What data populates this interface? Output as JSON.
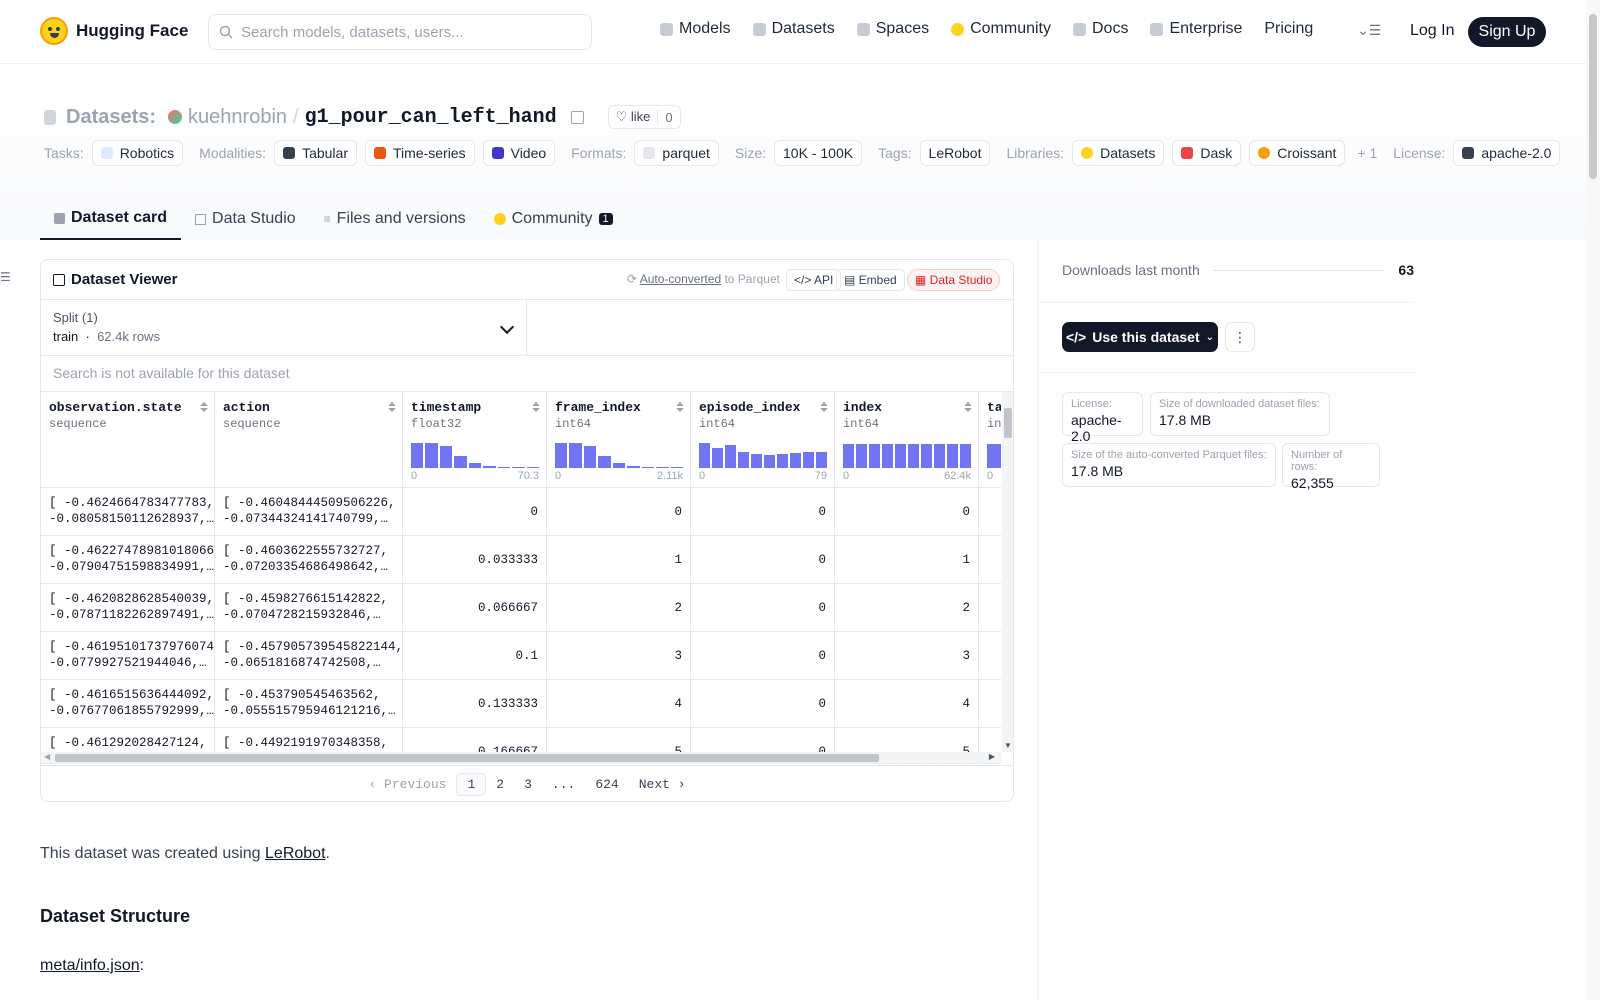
{
  "header": {
    "logo_text": "Hugging Face",
    "search_placeholder": "Search models, datasets, users...",
    "nav": [
      "Models",
      "Datasets",
      "Spaces",
      "Community",
      "Docs",
      "Enterprise",
      "Pricing"
    ],
    "login": "Log In",
    "signup": "Sign Up"
  },
  "repo": {
    "type_label": "Datasets:",
    "owner": "kuehnrobin",
    "separator": "/",
    "name": "g1_pour_can_left_hand",
    "like_label": "like",
    "like_count": "0",
    "tags": {
      "tasks_label": "Tasks:",
      "tasks": [
        "Robotics"
      ],
      "modalities_label": "Modalities:",
      "modalities": [
        "Tabular",
        "Time-series",
        "Video"
      ],
      "formats_label": "Formats:",
      "formats": [
        "parquet"
      ],
      "size_label": "Size:",
      "size": "10K - 100K",
      "tags_label": "Tags:",
      "tags": [
        "LeRobot"
      ],
      "libraries_label": "Libraries:",
      "libraries": [
        "Datasets",
        "Dask",
        "Croissant"
      ],
      "libraries_more": "+ 1",
      "license_label": "License:",
      "license": "apache-2.0"
    },
    "tabs": [
      "Dataset card",
      "Data Studio",
      "Files and versions",
      "Community"
    ],
    "community_badge": "1"
  },
  "viewer": {
    "title": "Dataset Viewer",
    "auto_converted": "Auto-converted",
    "to_parquet": " to Parquet",
    "api": "API",
    "embed": "Embed",
    "data_studio": "Data Studio",
    "split_label": "Split (1)",
    "split_value": "train",
    "split_rows": "62.4k rows",
    "search_placeholder": "Search is not available for this dataset",
    "columns": [
      {
        "name": "observation.state",
        "type": "sequence",
        "min": "",
        "max": "",
        "hist": []
      },
      {
        "name": "action",
        "type": "sequence",
        "min": "",
        "max": "",
        "hist": []
      },
      {
        "name": "timestamp",
        "type": "float32",
        "min": "0",
        "max": "70.3",
        "hist": [
          0.95,
          0.95,
          0.85,
          0.45,
          0.18,
          0.06,
          0.04,
          0.04,
          0.04
        ]
      },
      {
        "name": "frame_index",
        "type": "int64",
        "min": "0",
        "max": "2.11k",
        "hist": [
          0.95,
          0.95,
          0.85,
          0.45,
          0.18,
          0.06,
          0.04,
          0.04,
          0.04
        ]
      },
      {
        "name": "episode_index",
        "type": "int64",
        "min": "0",
        "max": "79",
        "hist": [
          0.95,
          0.75,
          0.88,
          0.6,
          0.52,
          0.5,
          0.52,
          0.56,
          0.6,
          0.62
        ]
      },
      {
        "name": "index",
        "type": "int64",
        "min": "0",
        "max": "62.4k",
        "hist": [
          0.92,
          0.92,
          0.92,
          0.92,
          0.92,
          0.92,
          0.92,
          0.92,
          0.92,
          0.92
        ]
      },
      {
        "name": "ta",
        "type": "in",
        "min": "0",
        "max": "",
        "hist": [
          0.92
        ]
      }
    ],
    "rows": [
      {
        "obs": "[ -0.4624664783477783,",
        "obs2": "-0.08058150112628937,…",
        "act": "[ -0.46048444509506226,",
        "act2": "-0.07344324141740799,…",
        "timestamp": "0",
        "frame_index": "0",
        "episode_index": "0",
        "index": "0"
      },
      {
        "obs": "[ -0.46227478981018066,",
        "obs2": "-0.07904751598834991,…",
        "act": "[ -0.4603622555732727,",
        "act2": "-0.07203354686498642,…",
        "timestamp": "0.033333",
        "frame_index": "1",
        "episode_index": "0",
        "index": "1"
      },
      {
        "obs": "[ -0.4620828628540039,",
        "obs2": "-0.07871182262897491,…",
        "act": "[ -0.4598276615142822,",
        "act2": "-0.0704728215932846,…",
        "timestamp": "0.066667",
        "frame_index": "2",
        "episode_index": "0",
        "index": "2"
      },
      {
        "obs": "[ -0.461951017379760744,",
        "obs2": "-0.0779927521944046,…",
        "act": "[ -0.457905739545822144,",
        "act2": "-0.0651816874742508,…",
        "timestamp": "0.1",
        "frame_index": "3",
        "episode_index": "0",
        "index": "3"
      },
      {
        "obs": "[ -0.4616515636444092,",
        "obs2": "-0.07677061855792999,…",
        "act": "[ -0.453790545463562,",
        "act2": "-0.055515795946121216,…",
        "timestamp": "0.133333",
        "frame_index": "4",
        "episode_index": "0",
        "index": "4"
      },
      {
        "obs": "[ -0.461292028427124,",
        "obs2": "",
        "act": "[ -0.4492191970348358,",
        "act2": "",
        "timestamp": "0.166667",
        "frame_index": "5",
        "episode_index": "0",
        "index": "5"
      }
    ],
    "pager": {
      "previous": "Previous",
      "pages": [
        "1",
        "2",
        "3",
        "...",
        "624"
      ],
      "next": "Next"
    }
  },
  "sidebar": {
    "downloads_label": "Downloads last month",
    "downloads": "63",
    "use_button": "Use this dataset",
    "license_label": "License:",
    "license": "apache-2.0",
    "dl_size_label": "Size of downloaded dataset files:",
    "dl_size": "17.8 MB",
    "parquet_size_label": "Size of the auto-converted Parquet files:",
    "parquet_size": "17.8 MB",
    "rows_label": "Number of rows:",
    "rows": "62,355"
  },
  "body": {
    "created_prefix": "This dataset was created using ",
    "created_link": "LeRobot",
    "created_suffix": ".",
    "structure_heading": "Dataset Structure",
    "meta_link": "meta/info.json",
    "meta_suffix": ":"
  },
  "colors": {
    "accent": "#6366f1",
    "brand_yellow": "#ffd21e",
    "dark": "#111827"
  }
}
